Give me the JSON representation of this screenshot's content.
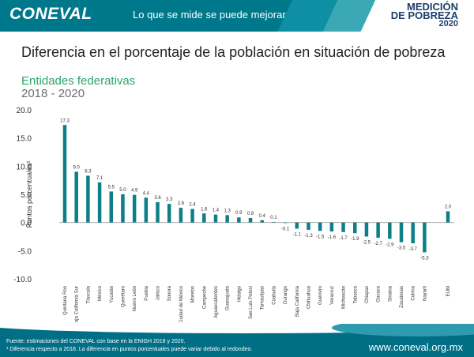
{
  "header": {
    "logo": "CONEVAL",
    "tagline": "Lo que se mide se puede mejorar",
    "badge_line1": "MEDICIÓN",
    "badge_line2": "DE POBREZA",
    "badge_line3": "2020"
  },
  "title": "Diferencia en el porcentaje de la población en situación de pobreza",
  "subtitle": "Entidades federativas",
  "period": "2018 - 2020",
  "footer": {
    "source": "Fuente: estimaciones del CONEVAL con base en la ENIGH 2018 y 2020.",
    "note": "¹ Diferencia respecto a 2018. La diferencia en puntos porcentuales puede variar debido al redondeo.",
    "website": "www.coneval.org.mx"
  },
  "colors": {
    "bar": "#0c7f88",
    "title": "#222222",
    "subtitle": "#2aa56b",
    "header": "#00788c",
    "footer": "#006f86"
  },
  "chart_data": {
    "type": "bar",
    "title": "Diferencia en el porcentaje de la población en situación de pobreza",
    "ylabel": "Puntos porcentuales¹",
    "xlabel": "",
    "ylim": [
      -10,
      20
    ],
    "yticks": [
      "-10.0",
      "-5.0",
      "0.0",
      "5.0",
      "10.0",
      "15.0",
      "20.0"
    ],
    "categories": [
      "Quintana Roo",
      "Baja California Sur",
      "Tlaxcala",
      "México",
      "Yucatán",
      "Querétaro",
      "Nuevo León",
      "Puebla",
      "Jalisco",
      "Sonora",
      "Ciudad de México",
      "Morelos",
      "Campeche",
      "Aguascalientes",
      "Guanajuato",
      "Hidalgo",
      "San Luis Potosí",
      "Tamaulipas",
      "Coahuila",
      "Durango",
      "Baja California",
      "Chihuahua",
      "Guerrero",
      "Veracruz",
      "Michoacán",
      "Tabasco",
      "Chiapas",
      "Oaxaca",
      "Sinaloa",
      "Zacatecas",
      "Colima",
      "Nayarit",
      "EUM"
    ],
    "values": [
      17.3,
      9.0,
      8.3,
      7.1,
      5.5,
      5.0,
      4.9,
      4.4,
      3.6,
      3.3,
      2.6,
      2.4,
      1.6,
      1.4,
      1.3,
      0.9,
      0.8,
      0.4,
      0.1,
      -0.1,
      -1.1,
      -1.3,
      -1.5,
      -1.6,
      -1.7,
      -1.9,
      -2.5,
      -2.7,
      -2.9,
      -3.5,
      -3.7,
      -5.3,
      2.0
    ],
    "value_labels": [
      "17.3",
      "9.0",
      "8.3",
      "7.1",
      "5.5",
      "5.0",
      "4.9",
      "4.4",
      "3.6",
      "3.3",
      "2.6",
      "2.4",
      "1.6",
      "1.4",
      "1.3",
      "0.9",
      "0.8",
      "0.4",
      "0.1",
      "-0.1",
      "-1.1",
      "-1.3",
      "-1.5",
      "-1.6",
      "-1.7",
      "-1.9",
      "-2.5",
      "-2.7",
      "-2.9",
      "-3.5",
      "-3.7",
      "-5.3",
      "2.0"
    ],
    "grid": false,
    "legend": "none"
  }
}
